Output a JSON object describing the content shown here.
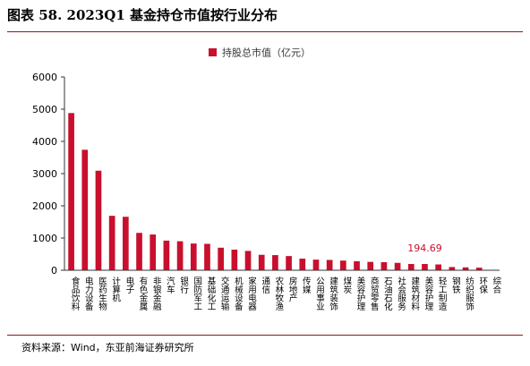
{
  "header": {
    "title": "图表 58. 2023Q1 基金持仓市值按行业分布"
  },
  "footer": {
    "source": "资料来源：Wind，东亚前海证券研究所"
  },
  "colors": {
    "bar": "#c8102e",
    "axis": "#333333",
    "rule": "#8b1a1a"
  },
  "chart_data": {
    "type": "bar",
    "title": "",
    "xlabel": "",
    "ylabel": "",
    "ylim": [
      0,
      6000
    ],
    "yticks": [
      0,
      1000,
      2000,
      3000,
      4000,
      5000,
      6000
    ],
    "legend": {
      "position": "top-center",
      "label": "持股总市值（亿元）"
    },
    "grid": false,
    "categories": [
      "食品饮料",
      "电力设备",
      "医药生物",
      "计算机",
      "电子",
      "有色金属",
      "非银金融",
      "汽车",
      "银行",
      "国防军工",
      "基础化工",
      "交通运输",
      "机械设备",
      "家用电器",
      "通信",
      "农林牧渔",
      "房地产",
      "传媒",
      "公用事业",
      "建筑装饰",
      "煤炭",
      "美容护理",
      "商贸零售",
      "石油石化",
      "社会服务",
      "建筑材料",
      "美容护理",
      "轻工制造",
      "钢铁",
      "纺织服饰",
      "环保",
      "综合"
    ],
    "series": [
      {
        "values": [
          4880,
          3740,
          3090,
          1690,
          1660,
          1160,
          1110,
          920,
          900,
          830,
          820,
          700,
          640,
          600,
          480,
          470,
          440,
          360,
          330,
          320,
          300,
          280,
          260,
          250,
          230,
          195,
          194.69,
          180,
          100,
          90,
          80,
          10
        ]
      }
    ],
    "annotations": [
      {
        "category_index": 26,
        "text": "194.69"
      }
    ]
  }
}
